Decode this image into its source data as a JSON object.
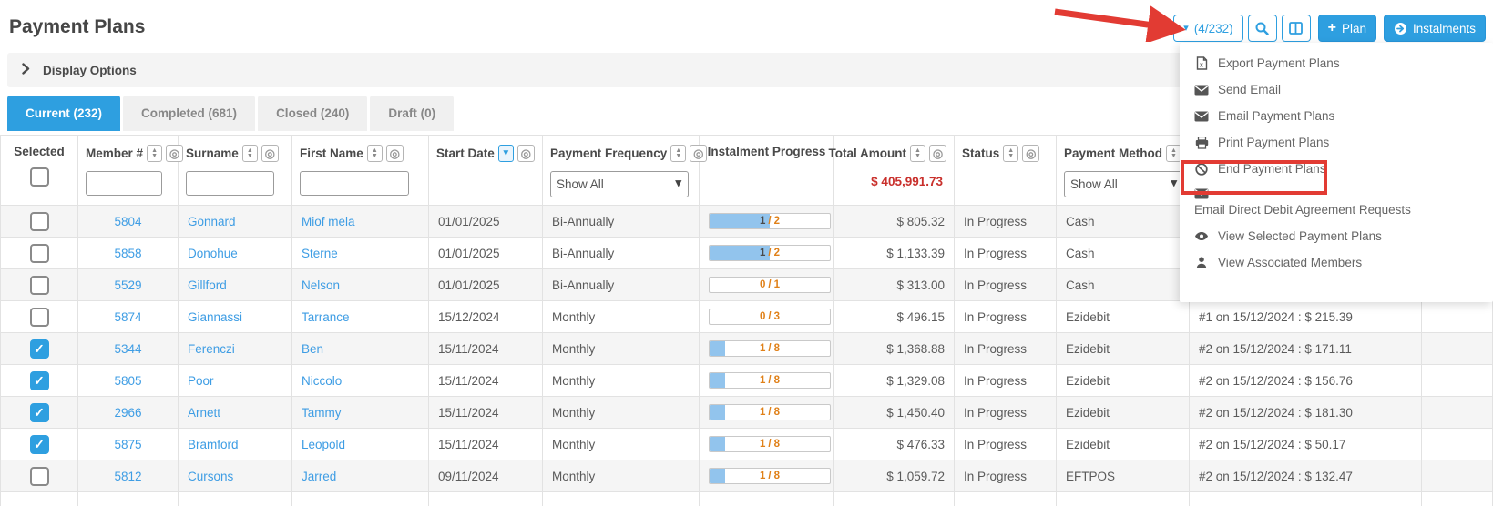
{
  "page": {
    "title": "Payment Plans"
  },
  "toolbar": {
    "selection_label": "(4/232)",
    "plan_label": "Plan",
    "instalments_label": "Instalments"
  },
  "display_options": {
    "label": "Display Options"
  },
  "tabs": [
    {
      "label": "Current (232)",
      "active": true
    },
    {
      "label": "Completed (681)",
      "active": false
    },
    {
      "label": "Closed (240)",
      "active": false
    },
    {
      "label": "Draft (0)",
      "active": false
    }
  ],
  "menu": {
    "items": [
      {
        "icon": "file-excel-icon",
        "label": "Export Payment Plans"
      },
      {
        "icon": "envelope-icon",
        "label": "Send Email"
      },
      {
        "icon": "envelope-icon",
        "label": "Email Payment Plans"
      },
      {
        "icon": "printer-icon",
        "label": "Print Payment Plans"
      },
      {
        "icon": "ban-icon",
        "label": "End Payment Plans",
        "highlighted": true
      },
      {
        "icon": "envelope-icon",
        "label": "Email Direct Debit Agreement Requests",
        "stacked": true
      },
      {
        "icon": "eye-icon",
        "label": "View Selected Payment Plans"
      },
      {
        "icon": "user-icon",
        "label": "View Associated Members"
      }
    ]
  },
  "table": {
    "columns": {
      "selected": "Selected",
      "member": "Member #",
      "surname": "Surname",
      "first_name": "First Name",
      "start_date": "Start Date",
      "frequency": "Payment Frequency",
      "progress": "Instalment Progress",
      "total": "Total Amount",
      "status": "Status",
      "method": "Payment Method"
    },
    "filters": {
      "frequency_value": "Show All",
      "method_value": "Show All"
    },
    "total_amount_summary": "$ 405,991.73",
    "rows": [
      {
        "selected": false,
        "member": "5804",
        "surname": "Gonnard",
        "first_name": "Miof mela",
        "start_date": "01/01/2025",
        "frequency": "Bi-Annually",
        "progress": {
          "done": "1",
          "total": "2",
          "pct": 50
        },
        "total": "$ 805.32",
        "status": "In Progress",
        "method": "Cash",
        "instalment": ""
      },
      {
        "selected": false,
        "member": "5858",
        "surname": "Donohue",
        "first_name": "Sterne",
        "start_date": "01/01/2025",
        "frequency": "Bi-Annually",
        "progress": {
          "done": "1",
          "total": "2",
          "pct": 50
        },
        "total": "$ 1,133.39",
        "status": "In Progress",
        "method": "Cash",
        "instalment": ""
      },
      {
        "selected": false,
        "member": "5529",
        "surname": "Gillford",
        "first_name": "Nelson",
        "start_date": "01/01/2025",
        "frequency": "Bi-Annually",
        "progress": {
          "done": "0",
          "total": "1",
          "pct": 0
        },
        "total": "$ 313.00",
        "status": "In Progress",
        "method": "Cash",
        "instalment": ""
      },
      {
        "selected": false,
        "member": "5874",
        "surname": "Giannassi",
        "first_name": "Tarrance",
        "start_date": "15/12/2024",
        "frequency": "Monthly",
        "progress": {
          "done": "0",
          "total": "3",
          "pct": 0
        },
        "total": "$ 496.15",
        "status": "In Progress",
        "method": "Ezidebit",
        "instalment": "#1 on 15/12/2024 : $ 215.39"
      },
      {
        "selected": true,
        "member": "5344",
        "surname": "Ferenczi",
        "first_name": "Ben",
        "start_date": "15/11/2024",
        "frequency": "Monthly",
        "progress": {
          "done": "1",
          "total": "8",
          "pct": 12.5
        },
        "total": "$ 1,368.88",
        "status": "In Progress",
        "method": "Ezidebit",
        "instalment": "#2 on 15/12/2024 : $ 171.11"
      },
      {
        "selected": true,
        "member": "5805",
        "surname": "Poor",
        "first_name": "Niccolo",
        "start_date": "15/11/2024",
        "frequency": "Monthly",
        "progress": {
          "done": "1",
          "total": "8",
          "pct": 12.5
        },
        "total": "$ 1,329.08",
        "status": "In Progress",
        "method": "Ezidebit",
        "instalment": "#2 on 15/12/2024 : $ 156.76"
      },
      {
        "selected": true,
        "member": "2966",
        "surname": "Arnett",
        "first_name": "Tammy",
        "start_date": "15/11/2024",
        "frequency": "Monthly",
        "progress": {
          "done": "1",
          "total": "8",
          "pct": 12.5
        },
        "total": "$ 1,450.40",
        "status": "In Progress",
        "method": "Ezidebit",
        "instalment": "#2 on 15/12/2024 : $ 181.30"
      },
      {
        "selected": true,
        "member": "5875",
        "surname": "Bramford",
        "first_name": "Leopold",
        "start_date": "15/11/2024",
        "frequency": "Monthly",
        "progress": {
          "done": "1",
          "total": "8",
          "pct": 12.5
        },
        "total": "$ 476.33",
        "status": "In Progress",
        "method": "Ezidebit",
        "instalment": "#2 on 15/12/2024 : $ 50.17"
      },
      {
        "selected": false,
        "member": "5812",
        "surname": "Cursons",
        "first_name": "Jarred",
        "start_date": "09/11/2024",
        "frequency": "Monthly",
        "progress": {
          "done": "1",
          "total": "8",
          "pct": 12.5
        },
        "total": "$ 1,059.72",
        "status": "In Progress",
        "method": "EFTPOS",
        "instalment": "#2 on 15/12/2024 : $ 132.47"
      },
      {
        "partial": true
      }
    ]
  },
  "annotation": {
    "arrow_color": "#e23b33",
    "box_color": "#e23b33"
  }
}
